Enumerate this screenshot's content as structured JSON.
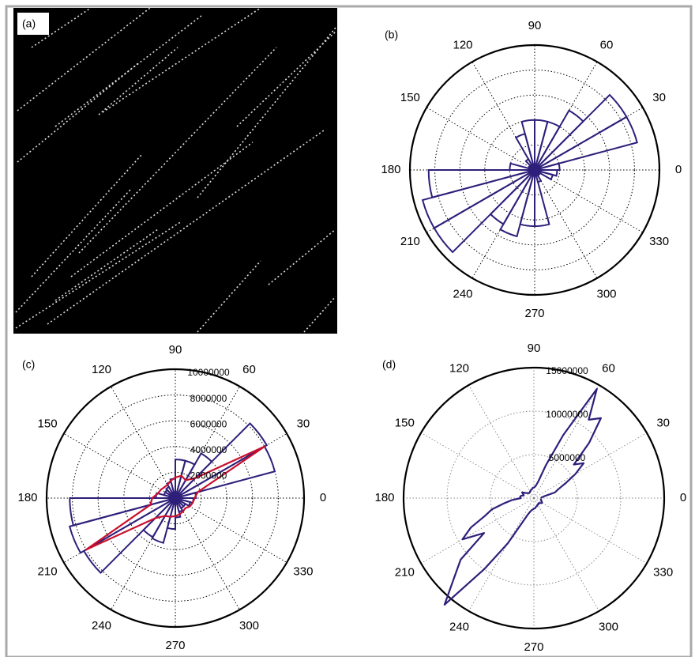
{
  "image": {
    "label": "(a)"
  },
  "chart_data": [
    {
      "type": "polar",
      "label": "(b)",
      "rlim": [
        0,
        1
      ],
      "rticks": [
        0.2,
        0.4,
        0.6,
        0.8
      ],
      "rtick_labels": false,
      "thetaticks": [
        0,
        30,
        60,
        90,
        120,
        150,
        180,
        210,
        240,
        270,
        300,
        330
      ],
      "grid_color": "#000",
      "series": [
        {
          "style": "bars",
          "color": "#2e1f7a",
          "theta_bins": [
            0,
            15,
            30,
            45,
            60,
            75,
            90,
            105,
            120,
            135,
            150,
            165,
            180,
            195,
            210,
            225,
            240,
            255,
            270,
            285,
            300,
            315,
            330,
            345,
            360
          ],
          "values": [
            0.2,
            0.85,
            0.85,
            0.55,
            0.4,
            0.4,
            0.4,
            0.3,
            0.1,
            0.05,
            0.05,
            0.2,
            0.85,
            0.93,
            0.93,
            0.5,
            0.55,
            0.45,
            0.45,
            0.1,
            0.05,
            0.05,
            0.15,
            0.18
          ]
        }
      ]
    },
    {
      "type": "polar",
      "label": "(c)",
      "rlim": [
        0,
        10000000
      ],
      "rticks": [
        2000000,
        4000000,
        6000000,
        8000000,
        10000000
      ],
      "rtick_labels": true,
      "thetaticks": [
        0,
        30,
        60,
        90,
        120,
        150,
        180,
        210,
        240,
        270,
        300,
        330
      ],
      "grid_color": "#000",
      "series": [
        {
          "style": "bars",
          "color": "#2e1f7a",
          "theta_bins": [
            0,
            15,
            30,
            45,
            60,
            75,
            90,
            105,
            120,
            135,
            150,
            165,
            180,
            195,
            210,
            225,
            240,
            255,
            270,
            285,
            300,
            315,
            330,
            345,
            360
          ],
          "values": [
            1600000,
            8000000,
            8200000,
            4000000,
            3000000,
            3000000,
            1500000,
            1300000,
            1000000,
            900000,
            900000,
            1500000,
            8200000,
            8500000,
            8200000,
            3500000,
            3600000,
            2400000,
            1500000,
            1100000,
            900000,
            900000,
            1200000,
            1400000
          ]
        },
        {
          "style": "line",
          "color": "#c8102e",
          "theta": [
            0,
            15,
            30,
            45,
            60,
            75,
            90,
            105,
            120,
            135,
            150,
            165,
            180,
            195,
            210,
            225,
            240,
            255,
            270,
            285,
            300,
            315,
            330,
            345,
            360
          ],
          "values": [
            1500000,
            1800000,
            8000000,
            2200000,
            1600000,
            1800000,
            1600000,
            1400000,
            1200000,
            1200000,
            1300000,
            1400000,
            1800000,
            2000000,
            8000000,
            2200000,
            1600000,
            1500000,
            1400000,
            1300000,
            1200000,
            1100000,
            1300000,
            1400000,
            1500000
          ]
        }
      ]
    },
    {
      "type": "polar",
      "label": "(d)",
      "rlim": [
        0,
        15000000
      ],
      "rticks": [
        5000000,
        10000000,
        15000000
      ],
      "rtick_labels": true,
      "thetaticks": [
        0,
        30,
        60,
        90,
        120,
        150,
        180,
        210,
        240,
        270,
        300,
        330
      ],
      "grid_color": "#888",
      "series": [
        {
          "style": "line",
          "color": "#2e1f7a",
          "theta": [
            0,
            5,
            10,
            15,
            20,
            25,
            30,
            35,
            40,
            45,
            50,
            55,
            60,
            65,
            70,
            75,
            80,
            85,
            90,
            95,
            100,
            105,
            110,
            115,
            120,
            125,
            130,
            135,
            140,
            145,
            150,
            155,
            160,
            165,
            170,
            175,
            180,
            185,
            190,
            195,
            200,
            205,
            210,
            215,
            220,
            225,
            230,
            235,
            240,
            245,
            250,
            255,
            260,
            265,
            270,
            275,
            280,
            285,
            290,
            295,
            300,
            305,
            310,
            315,
            320,
            325,
            330,
            335,
            340,
            345,
            350,
            355
          ],
          "values": [
            800000,
            900000,
            1200000,
            2500000,
            3000000,
            4000000,
            5500000,
            7000000,
            6000000,
            9000000,
            12000000,
            11000000,
            14500000,
            8000000,
            4000000,
            2000000,
            1500000,
            1300000,
            1200000,
            1200000,
            1100000,
            1000000,
            1000000,
            900000,
            900000,
            800000,
            800000,
            800000,
            900000,
            1000000,
            1200000,
            1500000,
            1300000,
            1200000,
            1500000,
            1600000,
            1500000,
            2500000,
            3500000,
            5000000,
            6000000,
            8000000,
            9500000,
            7000000,
            11000000,
            13000000,
            16000000,
            10000000,
            6000000,
            3000000,
            2000000,
            1600000,
            1400000,
            1300000,
            1200000,
            1200000,
            1100000,
            1000000,
            1000000,
            900000,
            900000,
            900000,
            800000,
            800000,
            900000,
            1000000,
            1100000,
            1000000,
            900000,
            900000,
            800000,
            800000
          ]
        }
      ]
    }
  ]
}
